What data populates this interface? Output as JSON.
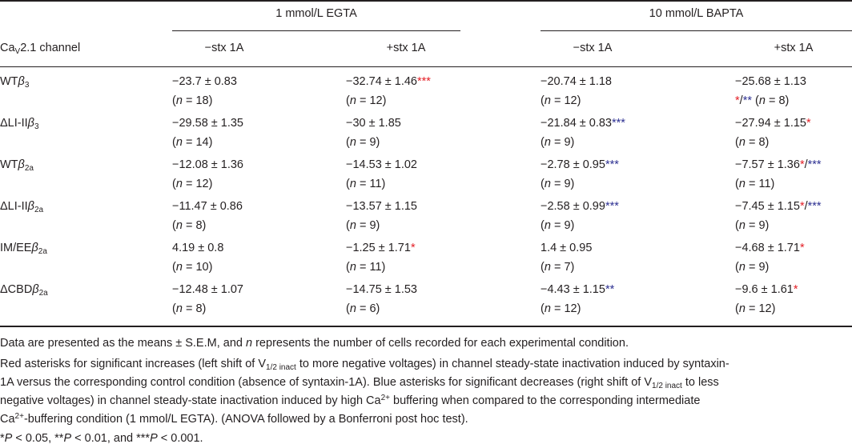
{
  "table": {
    "group_headers": [
      "1 mmol/L EGTA",
      "10 mmol/L BAPTA"
    ],
    "row_header": {
      "prefix": "Ca",
      "sub": "V",
      "suffix": "2.1 channel"
    },
    "column_headers": [
      "−stx 1A",
      "+stx 1A",
      "−stx 1A",
      "+stx 1A"
    ],
    "rows": [
      {
        "label": {
          "pre": "WT",
          "beta_sub": "3"
        },
        "cells": [
          {
            "value": "−23.7 ± 0.83",
            "n": "18"
          },
          {
            "value": "−32.74 ± 1.46",
            "red": "***",
            "n": "12"
          },
          {
            "value": "−20.74 ± 1.18",
            "n": "12"
          },
          {
            "value": "−25.68 ± 1.13",
            "n_red": "*",
            "n_slash": "/",
            "n_blue": "**",
            "n": "8"
          }
        ]
      },
      {
        "label": {
          "pre": "ΔLI-II",
          "beta_sub": "3"
        },
        "cells": [
          {
            "value": "−29.58 ± 1.35",
            "n": "14"
          },
          {
            "value": "−30 ± 1.85",
            "n": "9"
          },
          {
            "value": "−21.84 ± 0.83",
            "blue": "***",
            "n": "9"
          },
          {
            "value": "−27.94 ± 1.15",
            "red": "*",
            "n": "8"
          }
        ]
      },
      {
        "label": {
          "pre": "WT",
          "beta_sub": "2a"
        },
        "cells": [
          {
            "value": "−12.08 ± 1.36",
            "n": "12"
          },
          {
            "value": "−14.53 ± 1.02",
            "n": "11"
          },
          {
            "value": "−2.78 ± 0.95",
            "blue": "***",
            "n": "9"
          },
          {
            "value": "−7.57 ± 1.36",
            "red": "*",
            "slash": "/",
            "blue": "***",
            "n": "11"
          }
        ]
      },
      {
        "label": {
          "pre": "ΔLI-II",
          "beta_sub": "2a"
        },
        "cells": [
          {
            "value": "−11.47 ± 0.86",
            "n": "8"
          },
          {
            "value": "−13.57 ± 1.15",
            "n": "9"
          },
          {
            "value": "−2.58 ± 0.99",
            "blue": "***",
            "n": "9"
          },
          {
            "value": "−7.45 ± 1.15",
            "red": "*",
            "slash": "/",
            "blue": "***",
            "n": "9"
          }
        ]
      },
      {
        "label": {
          "pre": "IM/EE",
          "beta_sub": "2a"
        },
        "cells": [
          {
            "value": "4.19 ± 0.8",
            "n": "10"
          },
          {
            "value": "−1.25 ± 1.71",
            "red": "*",
            "n": "11"
          },
          {
            "value": "1.4 ± 0.95",
            "n": "7"
          },
          {
            "value": "−4.68 ± 1.71",
            "red": "*",
            "n": "9"
          }
        ]
      },
      {
        "label": {
          "pre": "ΔCBD",
          "beta_sub": "2a"
        },
        "cells": [
          {
            "value": "−12.48 ± 1.07",
            "n": "8"
          },
          {
            "value": "−14.75 ± 1.53",
            "n": "6"
          },
          {
            "value": "−4.43 ± 1.15",
            "blue": "**",
            "n": "12"
          },
          {
            "value": "−9.6 ± 1.61",
            "red": "*",
            "n": "12"
          }
        ]
      }
    ]
  },
  "notes": {
    "line1": {
      "a": "Data are presented as the means ± S.E.M, and ",
      "n": "n",
      "b": " represents the number of cells recorded for each experimental condition."
    },
    "line2": {
      "a": "Red asterisks for significant increases (left shift of V",
      "sub": "1/2 inact",
      "b": " to more negative voltages) in channel steady-state inactivation induced by syntaxin-"
    },
    "line3": "1A versus the corresponding control condition (absence of syntaxin-1A). Blue asterisks for significant decreases (right shift of V",
    "line3_sub": "1/2 inact",
    "line3_b": " to less",
    "line4": {
      "a": "negative voltages) in channel steady-state inactivation induced by high Ca",
      "sup": "2+",
      "b": " buffering when compared to the corresponding intermediate"
    },
    "line5": {
      "a": "Ca",
      "sup": "2+",
      "b": "-buffering condition (1 mmol/L EGTA). (ANOVA followed by a Bonferroni post hoc test)."
    },
    "line6": {
      "s1": "*",
      "p1": "P",
      "v1": " < 0.05, ",
      "s2": "**",
      "p2": "P",
      "v2": " < 0.01, and ",
      "s3": "***",
      "p3": "P",
      "v3": " < 0.001."
    }
  }
}
